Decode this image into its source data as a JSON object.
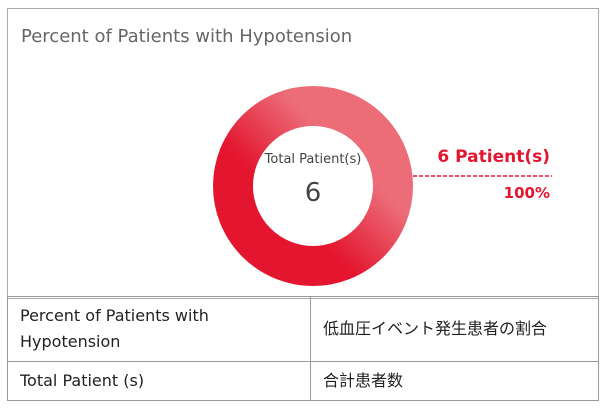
{
  "panel": {
    "title": "Percent of Patients with Hypotension",
    "donut": {
      "type": "pie",
      "values": [
        100
      ],
      "value_labels": [
        "100%"
      ],
      "center_label": "Total Patient(s)",
      "total": 6,
      "callout": "6 Patient(s)"
    }
  },
  "table": {
    "rows": [
      [
        "Percent of Patients with Hypotension",
        "低血圧イベント発生患者の割合"
      ],
      [
        "Total Patient (s)",
        "合計患者数"
      ]
    ]
  }
}
